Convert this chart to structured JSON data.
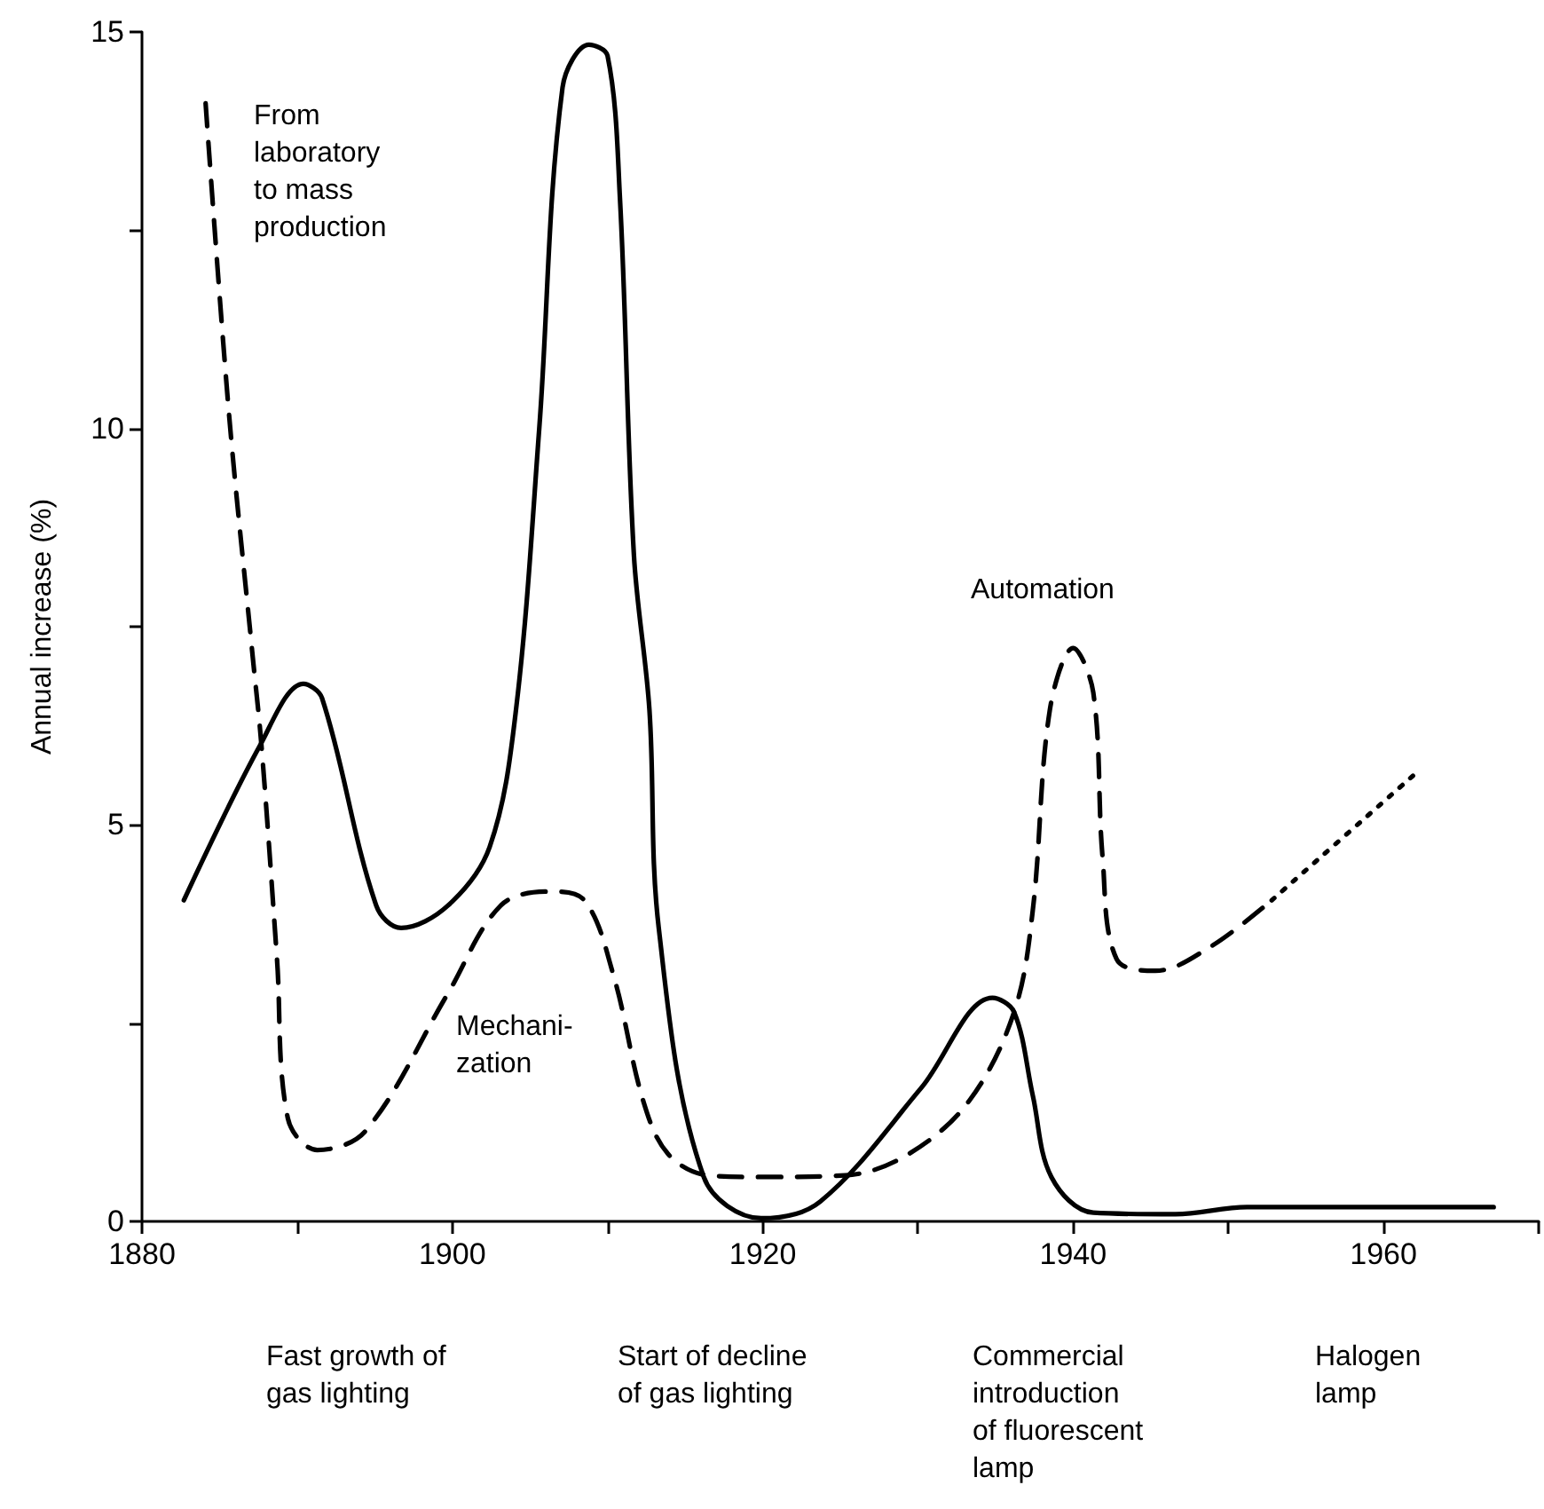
{
  "chart_data": {
    "type": "line",
    "ylabel": "Annual increase (%)",
    "xlim": [
      1880,
      1970
    ],
    "xticks": [
      1880,
      {
        "value": 1890,
        "label": null
      },
      1900,
      {
        "value": 1910,
        "label": null
      },
      1920,
      {
        "value": 1930,
        "label": null
      },
      1940,
      {
        "value": 1950,
        "label": null
      },
      1960,
      {
        "value": 1970,
        "label": null
      }
    ],
    "ylim": [
      0,
      15
    ],
    "yticks": [
      0,
      {
        "value": 2.5,
        "label": null
      },
      5,
      {
        "value": 7.5,
        "label": null
      },
      10,
      {
        "value": 12.5,
        "label": null
      },
      15
    ],
    "grid": false,
    "marker": "none",
    "series": [
      {
        "color": "#000000",
        "line_style": "solid",
        "x": [
          1882.7,
          1887.6,
          1890.4,
          1891.6,
          1895.1,
          1896.7,
          1899.7,
          1902.4,
          1904.1,
          1905.6,
          1907.1,
          1908.8,
          1910.0,
          1910.8,
          1911.7,
          1912.7,
          1913.3,
          1916.2,
          1919.9,
          1923.7,
          1930.2,
          1934.8,
          1936.2,
          1937.4,
          1938.6,
          1941.3,
          1946.6,
          1951.2,
          1967.1
        ],
        "values": [
          4.05,
          6.0,
          6.78,
          6.6,
          3.98,
          3.7,
          3.98,
          4.72,
          6.45,
          10.0,
          14.3,
          14.84,
          14.7,
          12.9,
          8.4,
          6.45,
          3.7,
          0.56,
          0.04,
          0.25,
          1.68,
          2.82,
          2.64,
          1.59,
          0.56,
          0.11,
          0.09,
          0.18,
          0.18
        ]
      },
      {
        "color": "#000000",
        "line_style": "dashed",
        "x": [
          1884.1,
          1885.6,
          1887.1,
          1887.7,
          1888.7,
          1889.4,
          1891.3,
          1894.4,
          1899.7,
          1903.1,
          1906.2,
          1908.5,
          1910.4,
          1912.3,
          1913.9,
          1916.5,
          1919.9,
          1925.3,
          1929.4,
          1933.3,
          1936.2,
          1937.4,
          1938.5,
          1940.0,
          1941.3,
          1941.9,
          1942.8,
          1945.3,
          1948.9,
          1952.8
        ],
        "values": [
          14.1,
          10.2,
          7.19,
          6.0,
          3.31,
          1.3,
          0.9,
          1.14,
          2.87,
          3.98,
          4.16,
          4.05,
          3.09,
          1.52,
          0.85,
          0.58,
          0.56,
          0.58,
          0.85,
          1.52,
          2.64,
          3.92,
          6.45,
          7.23,
          6.67,
          4.59,
          3.31,
          3.16,
          3.47,
          4.05
        ]
      },
      {
        "color": "#000000",
        "line_style": "dotted",
        "x": [
          1952.8,
          1961.9
        ],
        "values": [
          4.05,
          5.62
        ]
      }
    ],
    "annotations": [
      "From\nlaboratory\nto mass\nproduction",
      "Mechani-\nzation",
      "Automation",
      "Fast growth of\ngas lighting",
      "Start of decline\nof gas lighting",
      "Commercial\nintroduction\nof fluorescent\nlamp",
      "Halogen\nlamp"
    ]
  }
}
